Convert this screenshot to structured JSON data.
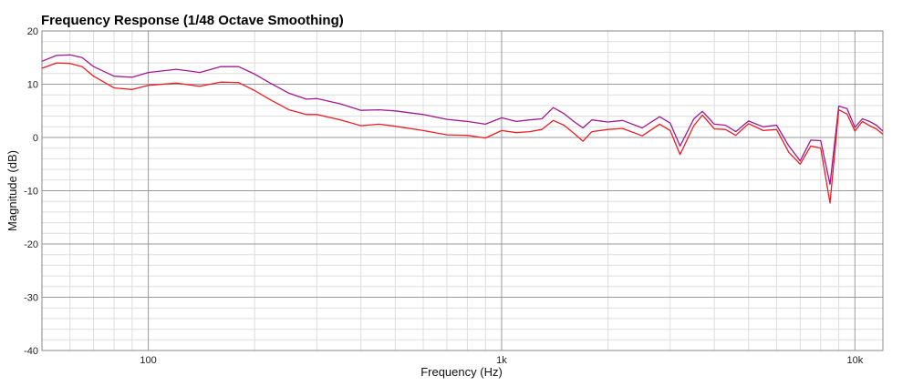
{
  "chart_data": {
    "type": "line",
    "title": "Frequency Response (1/48 Octave Smoothing)",
    "xlabel": "Frequency (Hz)",
    "ylabel": "Magnitude (dB)",
    "xscale": "log",
    "xlim": [
      50,
      12000
    ],
    "ylim": [
      -40,
      20
    ],
    "grid": true,
    "x_ticks": [
      {
        "value": 100,
        "label": "100"
      },
      {
        "value": 1000,
        "label": "1k"
      },
      {
        "value": 10000,
        "label": "10k"
      }
    ],
    "y_ticks": [
      {
        "value": 20,
        "label": "20"
      },
      {
        "value": 10,
        "label": "10"
      },
      {
        "value": 0,
        "label": "0"
      },
      {
        "value": -10,
        "label": "-10"
      },
      {
        "value": -20,
        "label": "-20"
      },
      {
        "value": -30,
        "label": "-30"
      },
      {
        "value": -40,
        "label": "-40"
      }
    ],
    "series": [
      {
        "color": "#a0198f",
        "points": [
          [
            50,
            14.3
          ],
          [
            55,
            15.4
          ],
          [
            60,
            15.5
          ],
          [
            65,
            15.0
          ],
          [
            70,
            13.3
          ],
          [
            80,
            11.5
          ],
          [
            90,
            11.3
          ],
          [
            100,
            12.2
          ],
          [
            120,
            12.8
          ],
          [
            130,
            12.5
          ],
          [
            140,
            12.2
          ],
          [
            160,
            13.3
          ],
          [
            180,
            13.3
          ],
          [
            200,
            11.9
          ],
          [
            220,
            10.3
          ],
          [
            250,
            8.3
          ],
          [
            280,
            7.2
          ],
          [
            300,
            7.3
          ],
          [
            350,
            6.3
          ],
          [
            400,
            5.1
          ],
          [
            450,
            5.2
          ],
          [
            500,
            5.0
          ],
          [
            600,
            4.3
          ],
          [
            700,
            3.4
          ],
          [
            800,
            3.0
          ],
          [
            900,
            2.5
          ],
          [
            1000,
            3.7
          ],
          [
            1100,
            3.0
          ],
          [
            1200,
            3.3
          ],
          [
            1300,
            3.5
          ],
          [
            1400,
            5.6
          ],
          [
            1500,
            4.5
          ],
          [
            1600,
            3.0
          ],
          [
            1700,
            1.8
          ],
          [
            1800,
            3.3
          ],
          [
            2000,
            2.9
          ],
          [
            2200,
            3.2
          ],
          [
            2500,
            1.8
          ],
          [
            2800,
            3.9
          ],
          [
            3000,
            2.7
          ],
          [
            3200,
            -1.6
          ],
          [
            3500,
            3.5
          ],
          [
            3700,
            4.9
          ],
          [
            4000,
            2.5
          ],
          [
            4300,
            2.3
          ],
          [
            4600,
            1.1
          ],
          [
            5000,
            3.1
          ],
          [
            5500,
            2.0
          ],
          [
            6000,
            2.3
          ],
          [
            6500,
            -1.6
          ],
          [
            7000,
            -4.4
          ],
          [
            7500,
            -0.5
          ],
          [
            8000,
            -0.6
          ],
          [
            8500,
            -8.8
          ],
          [
            9000,
            5.9
          ],
          [
            9500,
            5.4
          ],
          [
            10000,
            1.9
          ],
          [
            10500,
            3.5
          ],
          [
            11000,
            3.0
          ],
          [
            11500,
            2.3
          ],
          [
            12000,
            1.2
          ]
        ]
      },
      {
        "color": "#ee1c25",
        "points": [
          [
            50,
            13.0
          ],
          [
            55,
            14.0
          ],
          [
            60,
            13.9
          ],
          [
            65,
            13.3
          ],
          [
            70,
            11.5
          ],
          [
            80,
            9.3
          ],
          [
            90,
            9.0
          ],
          [
            100,
            9.8
          ],
          [
            120,
            10.2
          ],
          [
            130,
            9.9
          ],
          [
            140,
            9.6
          ],
          [
            160,
            10.4
          ],
          [
            180,
            10.3
          ],
          [
            200,
            8.8
          ],
          [
            220,
            7.2
          ],
          [
            250,
            5.2
          ],
          [
            280,
            4.3
          ],
          [
            300,
            4.3
          ],
          [
            350,
            3.3
          ],
          [
            400,
            2.2
          ],
          [
            450,
            2.5
          ],
          [
            500,
            2.1
          ],
          [
            600,
            1.3
          ],
          [
            700,
            0.5
          ],
          [
            800,
            0.4
          ],
          [
            900,
            -0.1
          ],
          [
            1000,
            1.3
          ],
          [
            1100,
            0.9
          ],
          [
            1200,
            1.1
          ],
          [
            1300,
            1.5
          ],
          [
            1400,
            3.2
          ],
          [
            1500,
            2.3
          ],
          [
            1600,
            0.8
          ],
          [
            1700,
            -0.7
          ],
          [
            1800,
            1.1
          ],
          [
            2000,
            1.5
          ],
          [
            2200,
            1.7
          ],
          [
            2500,
            0.3
          ],
          [
            2800,
            2.5
          ],
          [
            3000,
            1.3
          ],
          [
            3200,
            -3.2
          ],
          [
            3500,
            2.2
          ],
          [
            3700,
            4.2
          ],
          [
            4000,
            1.6
          ],
          [
            4300,
            1.5
          ],
          [
            4600,
            0.4
          ],
          [
            5000,
            2.6
          ],
          [
            5500,
            1.3
          ],
          [
            6000,
            1.5
          ],
          [
            6500,
            -2.8
          ],
          [
            7000,
            -5.0
          ],
          [
            7500,
            -1.6
          ],
          [
            8000,
            -2.0
          ],
          [
            8500,
            -12.3
          ],
          [
            9000,
            5.2
          ],
          [
            9500,
            4.4
          ],
          [
            10000,
            1.2
          ],
          [
            10500,
            3.0
          ],
          [
            11000,
            2.2
          ],
          [
            11500,
            1.6
          ],
          [
            12000,
            0.6
          ]
        ]
      }
    ]
  }
}
